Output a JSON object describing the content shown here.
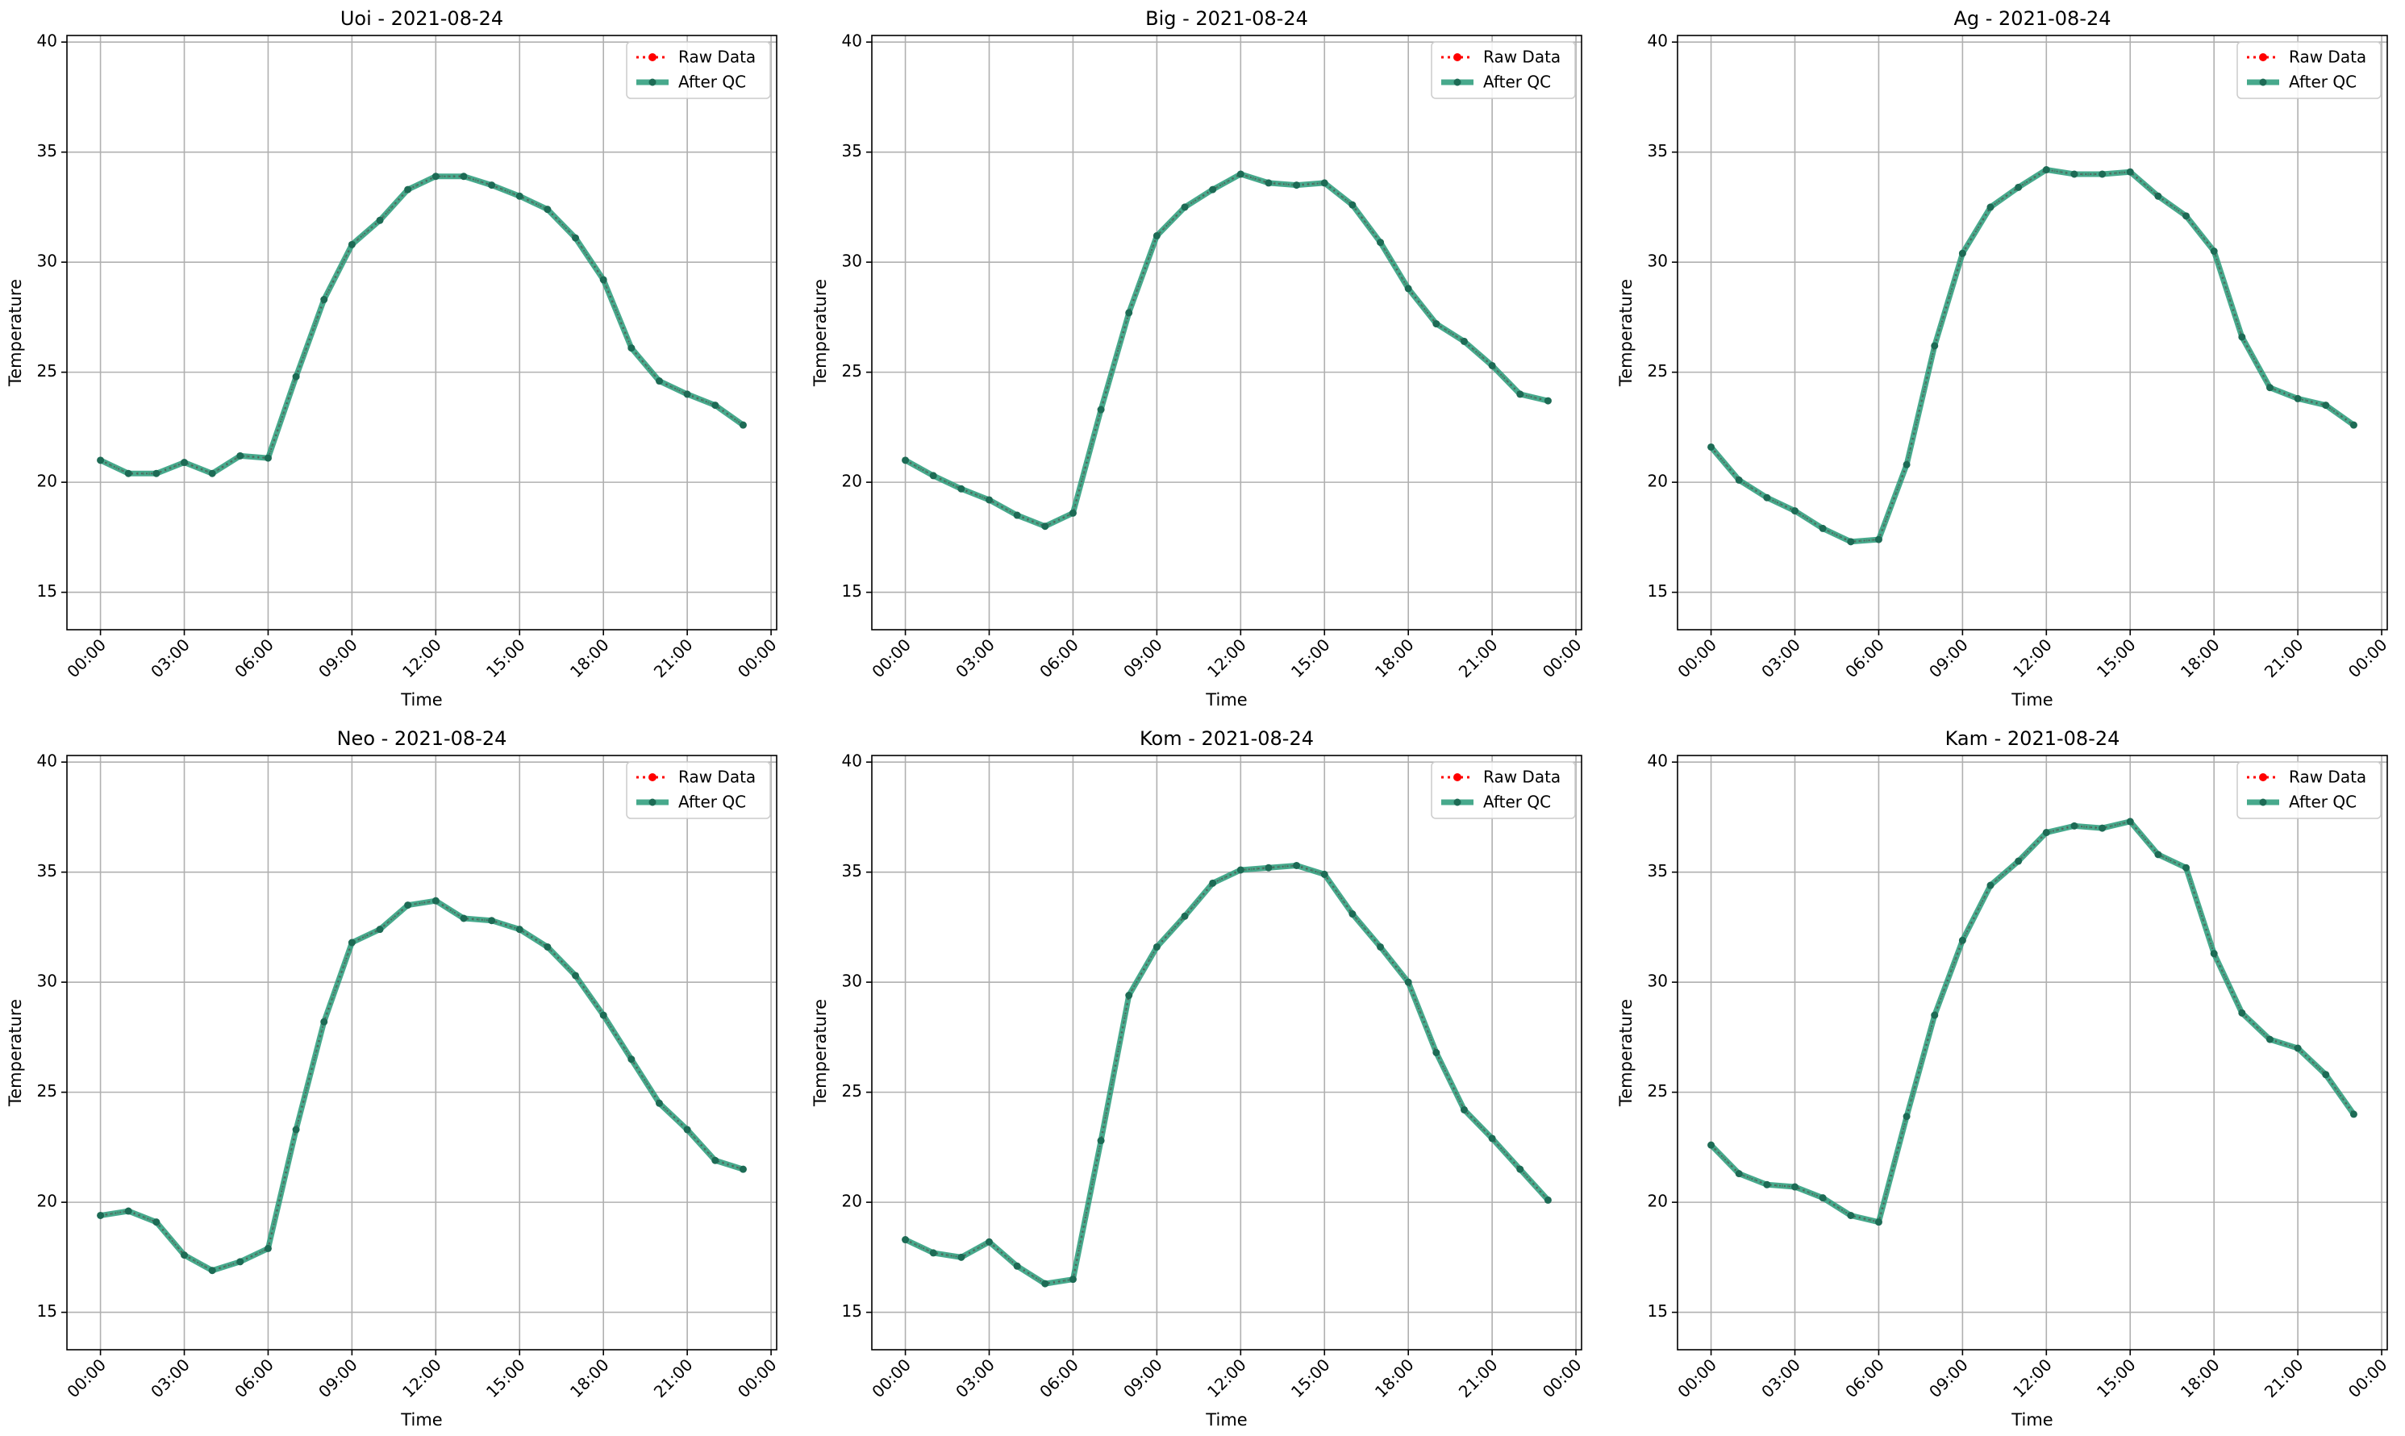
{
  "legend_labels": {
    "raw": "Raw Data",
    "qc": "After QC"
  },
  "colors": {
    "raw": "#ff0000",
    "qc": "#2e9e7d",
    "qc_marker": "#1d6b55",
    "grid": "#b0b0b0",
    "axes": "#000000"
  },
  "chart_data": [
    {
      "type": "line",
      "title": "Uoi - 2021-08-24",
      "xlabel": "Time",
      "ylabel": "Temperature",
      "x_tick_labels": [
        "00:00",
        "03:00",
        "06:00",
        "09:00",
        "12:00",
        "15:00",
        "18:00",
        "21:00",
        "00:00"
      ],
      "y_ticks": [
        15,
        20,
        25,
        30,
        35,
        40
      ],
      "xlim": [
        -1.2,
        24.2
      ],
      "ylim": [
        13.3,
        40.3
      ],
      "grid": true,
      "legend_position": "top-right",
      "x_hours": [
        0,
        1,
        2,
        3,
        4,
        5,
        6,
        7,
        8,
        9,
        10,
        11,
        12,
        13,
        14,
        15,
        16,
        17,
        18,
        19,
        20,
        21,
        22,
        23
      ],
      "series": [
        {
          "name": "Raw Data",
          "values": [
            21.0,
            20.4,
            20.4,
            20.9,
            20.4,
            21.2,
            21.1,
            24.8,
            28.3,
            30.8,
            31.9,
            33.3,
            33.9,
            33.9,
            33.5,
            33.0,
            32.4,
            31.1,
            29.2,
            26.1,
            24.6,
            24.0,
            23.5,
            22.6
          ]
        },
        {
          "name": "After QC",
          "values": [
            21.0,
            20.4,
            20.4,
            20.9,
            20.4,
            21.2,
            21.1,
            24.8,
            28.3,
            30.8,
            31.9,
            33.3,
            33.9,
            33.9,
            33.5,
            33.0,
            32.4,
            31.1,
            29.2,
            26.1,
            24.6,
            24.0,
            23.5,
            22.6
          ]
        }
      ]
    },
    {
      "type": "line",
      "title": "Big - 2021-08-24",
      "xlabel": "Time",
      "ylabel": "Temperature",
      "x_tick_labels": [
        "00:00",
        "03:00",
        "06:00",
        "09:00",
        "12:00",
        "15:00",
        "18:00",
        "21:00",
        "00:00"
      ],
      "y_ticks": [
        15,
        20,
        25,
        30,
        35,
        40
      ],
      "xlim": [
        -1.2,
        24.2
      ],
      "ylim": [
        13.3,
        40.3
      ],
      "grid": true,
      "legend_position": "top-right",
      "x_hours": [
        0,
        1,
        2,
        3,
        4,
        5,
        6,
        7,
        8,
        9,
        10,
        11,
        12,
        13,
        14,
        15,
        16,
        17,
        18,
        19,
        20,
        21,
        22,
        23
      ],
      "series": [
        {
          "name": "Raw Data",
          "values": [
            21.0,
            20.3,
            19.7,
            19.2,
            18.5,
            18.0,
            18.6,
            23.3,
            27.7,
            31.2,
            32.5,
            33.3,
            34.0,
            33.6,
            33.5,
            33.6,
            32.6,
            30.9,
            28.8,
            27.2,
            26.4,
            25.3,
            24.0,
            23.7
          ]
        },
        {
          "name": "After QC",
          "values": [
            21.0,
            20.3,
            19.7,
            19.2,
            18.5,
            18.0,
            18.6,
            23.3,
            27.7,
            31.2,
            32.5,
            33.3,
            34.0,
            33.6,
            33.5,
            33.6,
            32.6,
            30.9,
            28.8,
            27.2,
            26.4,
            25.3,
            24.0,
            23.7
          ]
        }
      ]
    },
    {
      "type": "line",
      "title": "Ag - 2021-08-24",
      "xlabel": "Time",
      "ylabel": "Temperature",
      "x_tick_labels": [
        "00:00",
        "03:00",
        "06:00",
        "09:00",
        "12:00",
        "15:00",
        "18:00",
        "21:00",
        "00:00"
      ],
      "y_ticks": [
        15,
        20,
        25,
        30,
        35,
        40
      ],
      "xlim": [
        -1.2,
        24.2
      ],
      "ylim": [
        13.3,
        40.3
      ],
      "grid": true,
      "legend_position": "top-right",
      "x_hours": [
        0,
        1,
        2,
        3,
        4,
        5,
        6,
        7,
        8,
        9,
        10,
        11,
        12,
        13,
        14,
        15,
        16,
        17,
        18,
        19,
        20,
        21,
        22,
        23
      ],
      "series": [
        {
          "name": "Raw Data",
          "values": [
            21.6,
            20.1,
            19.3,
            18.7,
            17.9,
            17.3,
            17.4,
            20.8,
            26.2,
            30.4,
            32.5,
            33.4,
            34.2,
            34.0,
            34.0,
            34.1,
            33.0,
            32.1,
            30.5,
            26.6,
            24.3,
            23.8,
            23.5,
            22.6
          ]
        },
        {
          "name": "After QC",
          "values": [
            21.6,
            20.1,
            19.3,
            18.7,
            17.9,
            17.3,
            17.4,
            20.8,
            26.2,
            30.4,
            32.5,
            33.4,
            34.2,
            34.0,
            34.0,
            34.1,
            33.0,
            32.1,
            30.5,
            26.6,
            24.3,
            23.8,
            23.5,
            22.6
          ]
        }
      ]
    },
    {
      "type": "line",
      "title": "Neo - 2021-08-24",
      "xlabel": "Time",
      "ylabel": "Temperature",
      "x_tick_labels": [
        "00:00",
        "03:00",
        "06:00",
        "09:00",
        "12:00",
        "15:00",
        "18:00",
        "21:00",
        "00:00"
      ],
      "y_ticks": [
        15,
        20,
        25,
        30,
        35,
        40
      ],
      "xlim": [
        -1.2,
        24.2
      ],
      "ylim": [
        13.3,
        40.3
      ],
      "grid": true,
      "legend_position": "top-right",
      "x_hours": [
        0,
        1,
        2,
        3,
        4,
        5,
        6,
        7,
        8,
        9,
        10,
        11,
        12,
        13,
        14,
        15,
        16,
        17,
        18,
        19,
        20,
        21,
        22,
        23
      ],
      "series": [
        {
          "name": "Raw Data",
          "values": [
            19.4,
            19.6,
            19.1,
            17.6,
            16.9,
            17.3,
            17.9,
            23.3,
            28.2,
            31.8,
            32.4,
            33.5,
            33.7,
            32.9,
            32.8,
            32.4,
            31.6,
            30.3,
            28.5,
            26.5,
            24.5,
            23.3,
            21.9,
            21.5
          ]
        },
        {
          "name": "After QC",
          "values": [
            19.4,
            19.6,
            19.1,
            17.6,
            16.9,
            17.3,
            17.9,
            23.3,
            28.2,
            31.8,
            32.4,
            33.5,
            33.7,
            32.9,
            32.8,
            32.4,
            31.6,
            30.3,
            28.5,
            26.5,
            24.5,
            23.3,
            21.9,
            21.5
          ]
        }
      ]
    },
    {
      "type": "line",
      "title": "Kom - 2021-08-24",
      "xlabel": "Time",
      "ylabel": "Temperature",
      "x_tick_labels": [
        "00:00",
        "03:00",
        "06:00",
        "09:00",
        "12:00",
        "15:00",
        "18:00",
        "21:00",
        "00:00"
      ],
      "y_ticks": [
        15,
        20,
        25,
        30,
        35,
        40
      ],
      "xlim": [
        -1.2,
        24.2
      ],
      "ylim": [
        13.3,
        40.3
      ],
      "grid": true,
      "legend_position": "top-right",
      "x_hours": [
        0,
        1,
        2,
        3,
        4,
        5,
        6,
        7,
        8,
        9,
        10,
        11,
        12,
        13,
        14,
        15,
        16,
        17,
        18,
        19,
        20,
        21,
        22,
        23
      ],
      "series": [
        {
          "name": "Raw Data",
          "values": [
            18.3,
            17.7,
            17.5,
            18.2,
            17.1,
            16.3,
            16.5,
            22.8,
            29.4,
            31.6,
            33.0,
            34.5,
            35.1,
            35.2,
            35.3,
            34.9,
            33.1,
            31.6,
            30.0,
            26.8,
            24.2,
            22.9,
            21.5,
            20.1
          ]
        },
        {
          "name": "After QC",
          "values": [
            18.3,
            17.7,
            17.5,
            18.2,
            17.1,
            16.3,
            16.5,
            22.8,
            29.4,
            31.6,
            33.0,
            34.5,
            35.1,
            35.2,
            35.3,
            34.9,
            33.1,
            31.6,
            30.0,
            26.8,
            24.2,
            22.9,
            21.5,
            20.1
          ]
        }
      ]
    },
    {
      "type": "line",
      "title": "Kam - 2021-08-24",
      "xlabel": "Time",
      "ylabel": "Temperature",
      "x_tick_labels": [
        "00:00",
        "03:00",
        "06:00",
        "09:00",
        "12:00",
        "15:00",
        "18:00",
        "21:00",
        "00:00"
      ],
      "y_ticks": [
        15,
        20,
        25,
        30,
        35,
        40
      ],
      "xlim": [
        -1.2,
        24.2
      ],
      "ylim": [
        13.3,
        40.3
      ],
      "grid": true,
      "legend_position": "top-right",
      "x_hours": [
        0,
        1,
        2,
        3,
        4,
        5,
        6,
        7,
        8,
        9,
        10,
        11,
        12,
        13,
        14,
        15,
        16,
        17,
        18,
        19,
        20,
        21,
        22,
        23
      ],
      "series": [
        {
          "name": "Raw Data",
          "values": [
            22.6,
            21.3,
            20.8,
            20.7,
            20.2,
            19.4,
            19.1,
            23.9,
            28.5,
            31.9,
            34.4,
            35.5,
            36.8,
            37.1,
            37.0,
            37.3,
            35.8,
            35.2,
            31.3,
            28.6,
            27.4,
            27.0,
            25.8,
            24.0
          ]
        },
        {
          "name": "After QC",
          "values": [
            22.6,
            21.3,
            20.8,
            20.7,
            20.2,
            19.4,
            19.1,
            23.9,
            28.5,
            31.9,
            34.4,
            35.5,
            36.8,
            37.1,
            37.0,
            37.3,
            35.8,
            35.2,
            31.3,
            28.6,
            27.4,
            27.0,
            25.8,
            24.0
          ]
        }
      ]
    }
  ]
}
